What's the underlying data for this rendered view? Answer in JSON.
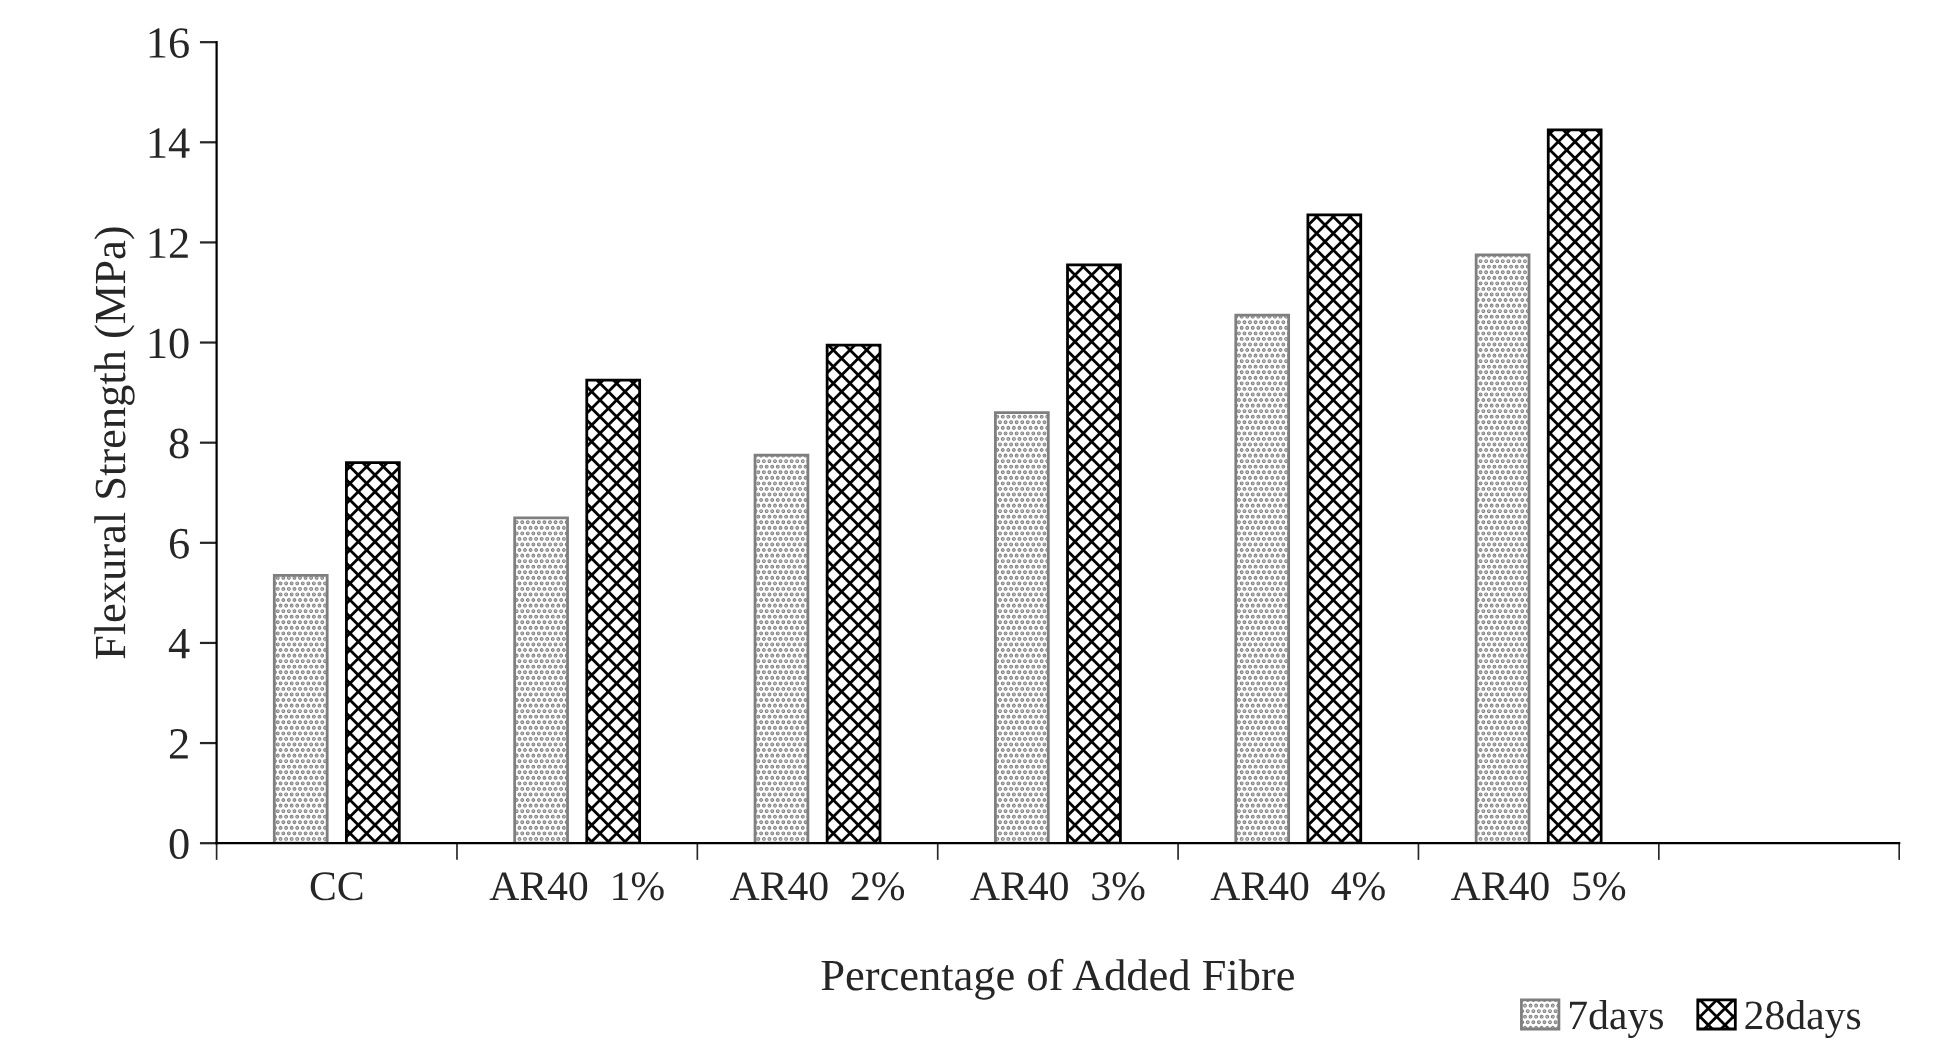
{
  "chart_data": {
    "type": "bar",
    "xlabel": "Percentage of Added Fibre",
    "ylabel": "Flexural Strength (MPa)",
    "categories": [
      "CC",
      "AR40  1%",
      "AR40  2%",
      "AR40  3%",
      "AR40  4%",
      "AR40  5%",
      null
    ],
    "series": [
      {
        "name": "7days",
        "color": "#7f7f7f",
        "values": [
          5.35,
          6.5,
          7.75,
          8.6,
          10.55,
          11.75,
          null
        ]
      },
      {
        "name": "28days",
        "color": "#000000",
        "values": [
          7.6,
          9.25,
          9.95,
          11.55,
          12.55,
          14.25,
          null
        ]
      }
    ],
    "ylim": [
      0,
      16
    ],
    "yticks": [
      0,
      2,
      4,
      6,
      8,
      10,
      12,
      14,
      16
    ],
    "grid": false,
    "legend": "bottom right"
  }
}
